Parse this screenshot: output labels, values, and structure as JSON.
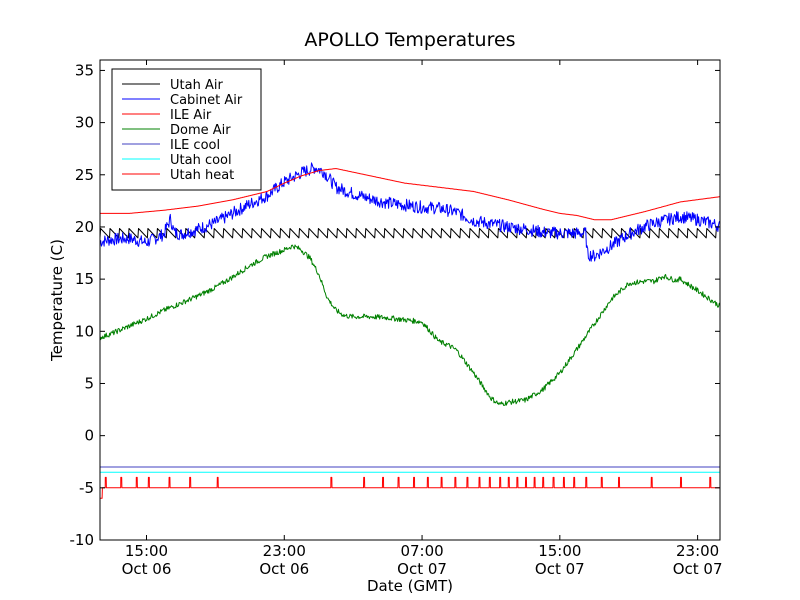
{
  "chart_data": {
    "type": "line",
    "title": "APOLLO Temperatures",
    "xlabel": "Date (GMT)",
    "ylabel": "Temperature (C)",
    "xlim_hours": [
      10.3,
      46.3
    ],
    "ylim": [
      -10,
      36
    ],
    "yticks": [
      -10,
      -5,
      0,
      5,
      10,
      15,
      20,
      25,
      30,
      35
    ],
    "xticks": [
      {
        "hour": 13,
        "time": "15:00",
        "date": "Oct 06"
      },
      {
        "hour": 21,
        "time": "23:00",
        "date": "Oct 06"
      },
      {
        "hour": 29,
        "time": "07:00",
        "date": "Oct 07"
      },
      {
        "hour": 37,
        "time": "15:00",
        "date": "Oct 07"
      },
      {
        "hour": 45,
        "time": "23:00",
        "date": "Oct 07"
      }
    ],
    "grid": false,
    "legend_position": "top-left",
    "series": [
      {
        "name": "Utah Air",
        "color": "#000000",
        "style": "sawtooth",
        "base": 19.4,
        "amplitude": 0.9,
        "period_hours": 0.55
      },
      {
        "name": "Cabinet Air",
        "color": "#0000ff",
        "noise": 0.6,
        "x": [
          10.3,
          11,
          12,
          13,
          14,
          14.4,
          14.6,
          15,
          16,
          17,
          18,
          19,
          20,
          21,
          22,
          22.8,
          23.3,
          24,
          25,
          26,
          27,
          28,
          29,
          30,
          31,
          32,
          33,
          34,
          35,
          36,
          37,
          38,
          38.5,
          38.6,
          39,
          40,
          41,
          42,
          43,
          44,
          45,
          46.3
        ],
        "y": [
          18.6,
          18.8,
          18.9,
          18.5,
          19.3,
          20.8,
          19.5,
          19.3,
          19.8,
          20.4,
          21.3,
          22.2,
          23.0,
          24.3,
          25.2,
          25.7,
          25.3,
          23.8,
          23.2,
          22.7,
          22.3,
          22.1,
          21.9,
          21.8,
          21.4,
          20.6,
          20.3,
          20.0,
          19.8,
          19.5,
          19.4,
          19.4,
          19.4,
          17.4,
          17.2,
          18.2,
          19.3,
          20.1,
          20.6,
          21.0,
          20.7,
          20.1
        ]
      },
      {
        "name": "ILE Air",
        "color": "#ff0000",
        "x": [
          10.3,
          12,
          14,
          16,
          18,
          20,
          21,
          22,
          23,
          24,
          26,
          28,
          30,
          32,
          34,
          36,
          37,
          38,
          39,
          40,
          42,
          44,
          46.3
        ],
        "y": [
          21.3,
          21.3,
          21.6,
          22.0,
          22.6,
          23.4,
          24.2,
          24.9,
          25.4,
          25.6,
          24.9,
          24.2,
          23.8,
          23.4,
          22.6,
          21.7,
          21.3,
          21.1,
          20.7,
          20.7,
          21.5,
          22.4,
          22.9
        ]
      },
      {
        "name": "Dome Air",
        "color": "#008000",
        "noise": 0.25,
        "x": [
          10.3,
          11,
          12,
          13,
          14,
          15,
          16,
          17,
          18,
          19,
          20,
          21,
          21.5,
          22,
          22.5,
          23,
          23.5,
          24,
          24.5,
          25,
          26,
          27,
          28,
          29,
          30,
          30.5,
          31,
          32,
          33,
          33.5,
          34,
          35,
          36,
          37,
          38,
          39,
          40,
          41,
          42,
          42.5,
          43,
          43.7,
          44,
          45,
          46.3
        ],
        "y": [
          9.4,
          9.8,
          10.5,
          11.2,
          12.0,
          12.7,
          13.4,
          14.2,
          15.2,
          16.3,
          17.2,
          17.8,
          18.2,
          17.8,
          17.0,
          15.5,
          13.2,
          12.0,
          11.5,
          11.4,
          11.4,
          11.3,
          11.1,
          10.9,
          9.0,
          8.7,
          8.2,
          6.0,
          3.6,
          3.0,
          3.2,
          3.4,
          4.4,
          6.0,
          8.3,
          10.7,
          13.1,
          14.6,
          14.8,
          14.8,
          15.3,
          14.9,
          15.0,
          13.9,
          12.4
        ]
      },
      {
        "name": "ILE cool",
        "color": "#4040c0",
        "constant": -3.0
      },
      {
        "name": "Utah cool",
        "color": "#00ffff",
        "constant": -3.5
      },
      {
        "name": "Utah heat",
        "color": "#ff0000",
        "style": "pulses",
        "base": -5.0,
        "pulse_top": -4.0,
        "initial_dip": -6.0,
        "pulse_hours": [
          10.6,
          11.5,
          12.4,
          13.1,
          14.3,
          15.5,
          17.1,
          23.7,
          25.6,
          26.7,
          27.6,
          28.5,
          29.3,
          30.1,
          30.9,
          31.6,
          32.3,
          32.9,
          33.5,
          34.0,
          34.5,
          35.0,
          35.5,
          36.0,
          36.6,
          37.2,
          37.8,
          38.5,
          39.4,
          40.4,
          42.3,
          44.0,
          45.7
        ]
      }
    ]
  }
}
